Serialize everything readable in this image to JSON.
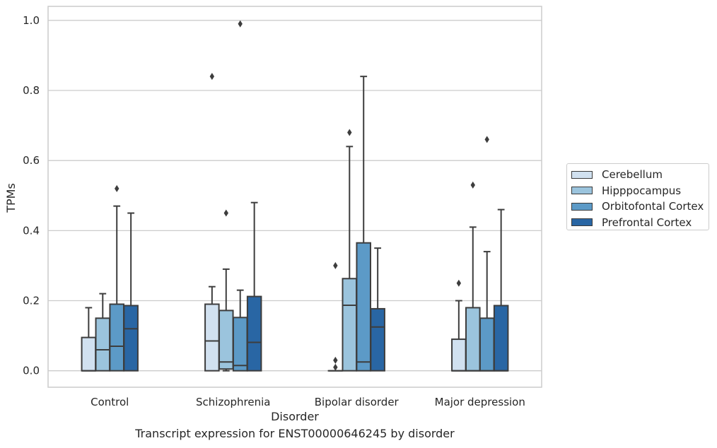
{
  "chart_data": {
    "type": "box",
    "caption": "Transcript expression for ENST00000646245 by disorder",
    "xlabel": "Disorder",
    "ylabel": "TPMs",
    "ylim": [
      -0.047,
      1.04
    ],
    "yticks": [
      "0.0",
      "0.2",
      "0.4",
      "0.6",
      "0.8",
      "1.0"
    ],
    "ytick_values": [
      0.0,
      0.2,
      0.4,
      0.6,
      0.8,
      1.0
    ],
    "grid": true,
    "legend_position": "right",
    "categories": [
      "Control",
      "Schizophrenia",
      "Bipolar disorder",
      "Major depression"
    ],
    "series": [
      {
        "name": "Cerebellum",
        "color": "#d1e1f0",
        "boxes": [
          {
            "whisker_low": 0.0,
            "q1": 0.0,
            "median": 0.0,
            "q3": 0.095,
            "whisker_high": 0.18,
            "outliers": []
          },
          {
            "whisker_low": 0.0,
            "q1": 0.0,
            "median": 0.085,
            "q3": 0.19,
            "whisker_high": 0.24,
            "outliers": [
              0.84
            ]
          },
          {
            "whisker_low": 0.0,
            "q1": 0.0,
            "median": 0.0,
            "q3": 0.0,
            "whisker_high": 0.0,
            "outliers": [
              0.03,
              0.01,
              0.3
            ]
          },
          {
            "whisker_low": 0.0,
            "q1": 0.0,
            "median": 0.0,
            "q3": 0.09,
            "whisker_high": 0.2,
            "outliers": [
              0.25
            ]
          }
        ]
      },
      {
        "name": "Hipppocampus",
        "color": "#9bc4dd",
        "boxes": [
          {
            "whisker_low": 0.0,
            "q1": 0.0,
            "median": 0.06,
            "q3": 0.15,
            "whisker_high": 0.22,
            "outliers": []
          },
          {
            "whisker_low": 0.0,
            "q1": 0.005,
            "median": 0.025,
            "q3": 0.172,
            "whisker_high": 0.29,
            "outliers": [
              0.45
            ]
          },
          {
            "whisker_low": 0.0,
            "q1": 0.0,
            "median": 0.187,
            "q3": 0.263,
            "whisker_high": 0.64,
            "outliers": [
              0.68
            ]
          },
          {
            "whisker_low": 0.0,
            "q1": 0.0,
            "median": 0.0,
            "q3": 0.18,
            "whisker_high": 0.41,
            "outliers": [
              0.53
            ]
          }
        ]
      },
      {
        "name": "Orbitofontal Cortex",
        "color": "#5c9ac7",
        "boxes": [
          {
            "whisker_low": 0.0,
            "q1": 0.0,
            "median": 0.07,
            "q3": 0.19,
            "whisker_high": 0.47,
            "outliers": [
              0.52
            ]
          },
          {
            "whisker_low": 0.0,
            "q1": 0.0,
            "median": 0.015,
            "q3": 0.152,
            "whisker_high": 0.23,
            "outliers": [
              0.99
            ]
          },
          {
            "whisker_low": 0.0,
            "q1": 0.0,
            "median": 0.025,
            "q3": 0.365,
            "whisker_high": 0.84,
            "outliers": []
          },
          {
            "whisker_low": 0.0,
            "q1": 0.0,
            "median": 0.0,
            "q3": 0.15,
            "whisker_high": 0.34,
            "outliers": [
              0.66
            ]
          }
        ]
      },
      {
        "name": "Prefrontal Cortex",
        "color": "#2966a4",
        "boxes": [
          {
            "whisker_low": 0.0,
            "q1": 0.0,
            "median": 0.12,
            "q3": 0.186,
            "whisker_high": 0.45,
            "outliers": []
          },
          {
            "whisker_low": 0.0,
            "q1": 0.0,
            "median": 0.081,
            "q3": 0.212,
            "whisker_high": 0.48,
            "outliers": []
          },
          {
            "whisker_low": 0.0,
            "q1": 0.0,
            "median": 0.125,
            "q3": 0.177,
            "whisker_high": 0.35,
            "outliers": []
          },
          {
            "whisker_low": 0.0,
            "q1": 0.0,
            "median": 0.0,
            "q3": 0.186,
            "whisker_high": 0.46,
            "outliers": []
          }
        ]
      }
    ]
  }
}
